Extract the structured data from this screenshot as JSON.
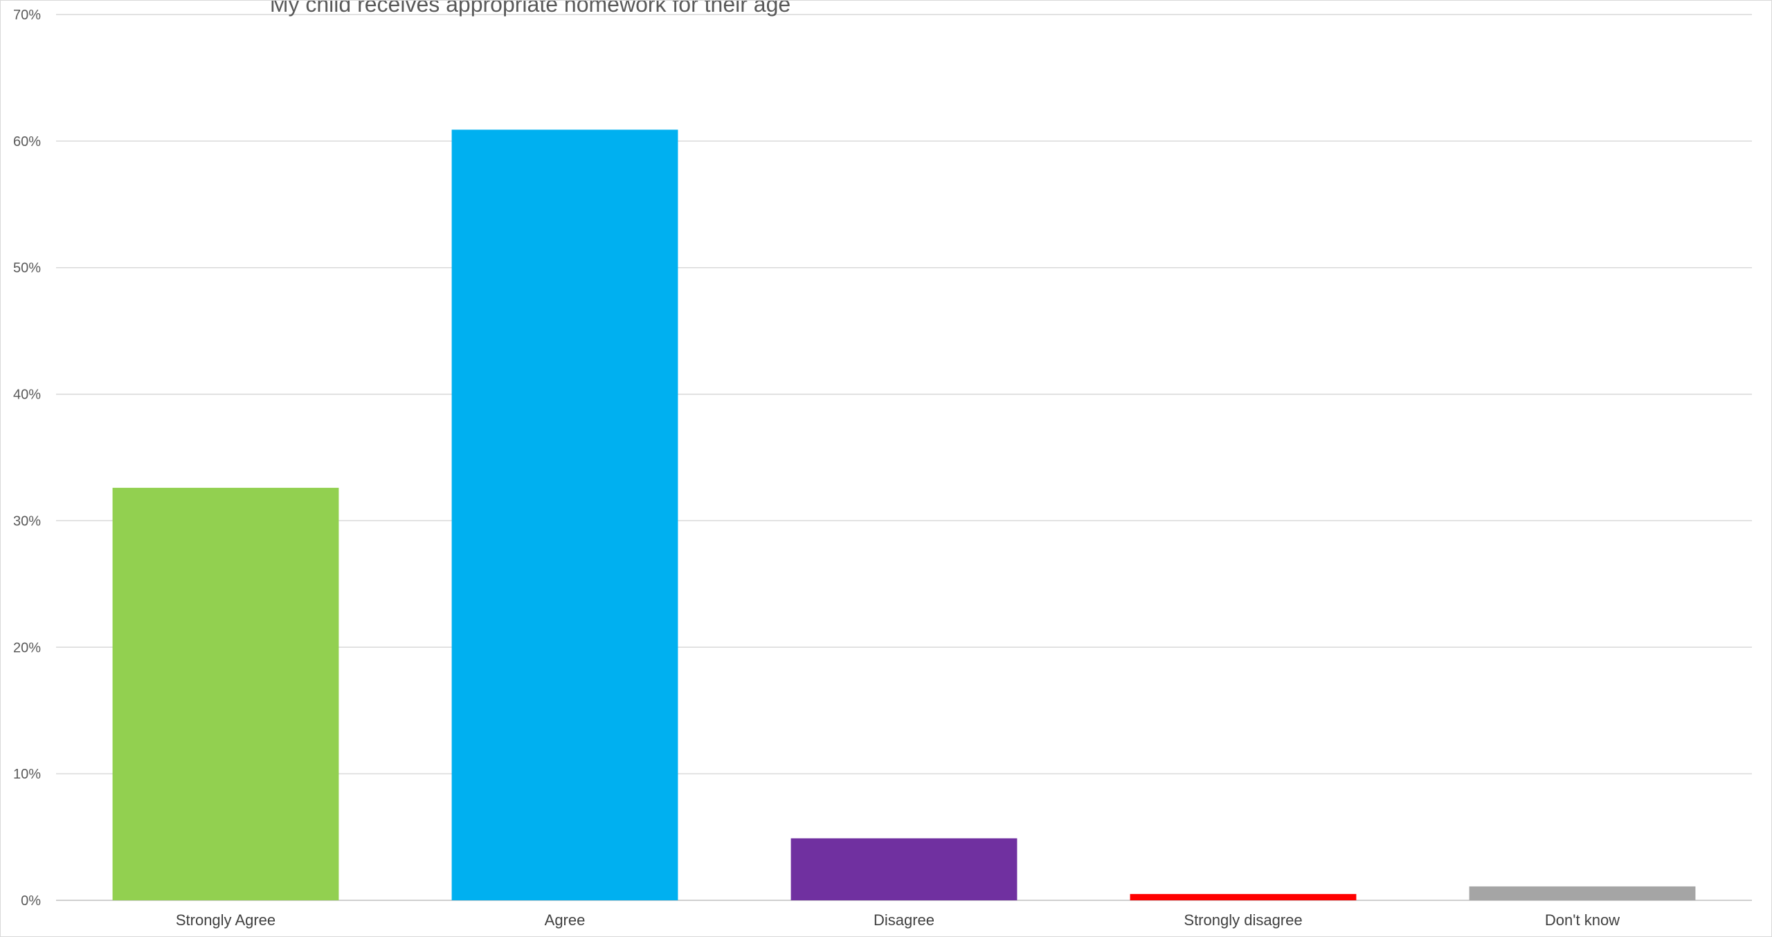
{
  "chart_data": {
    "type": "bar",
    "title": "My child receives appropriate homework for their age",
    "xlabel": "",
    "ylabel": "",
    "categories": [
      "Strongly Agree",
      "Agree",
      "Disagree",
      "Strongly disagree",
      "Don't know"
    ],
    "values": [
      0.326,
      0.609,
      0.049,
      0.005,
      0.011
    ],
    "colors": [
      "#92d050",
      "#00b0f0",
      "#7030a0",
      "#ff0000",
      "#a5a5a5"
    ],
    "ylim": [
      0,
      0.7
    ],
    "yticks": [
      0,
      0.1,
      0.2,
      0.3,
      0.4,
      0.5,
      0.6,
      0.7
    ],
    "ytick_labels": [
      "0%",
      "10%",
      "20%",
      "30%",
      "40%",
      "50%",
      "60%",
      "70%"
    ],
    "grid": true,
    "legend": "none"
  }
}
